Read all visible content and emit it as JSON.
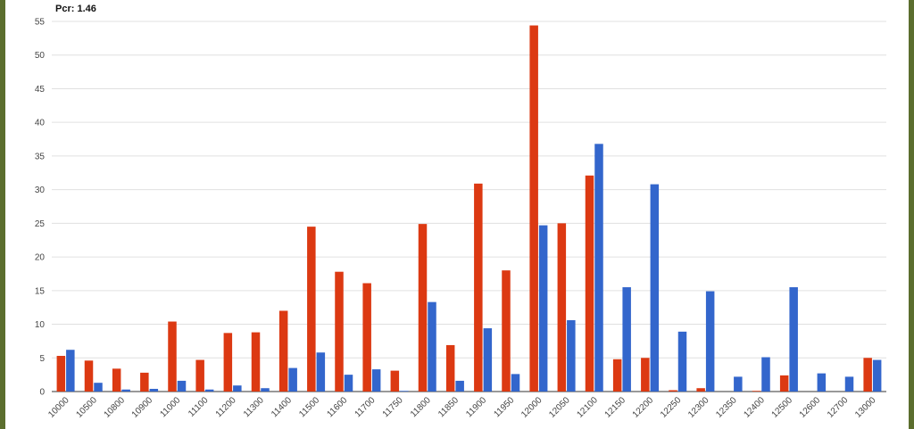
{
  "chart_data": {
    "type": "bar",
    "title": "Pcr: 1.46",
    "xlabel": "",
    "ylabel": "",
    "ylim": [
      0,
      55
    ],
    "yticks": [
      0,
      5,
      10,
      15,
      20,
      25,
      30,
      35,
      40,
      45,
      50,
      55
    ],
    "grid": true,
    "legend": "none",
    "categories": [
      "10000",
      "10500",
      "10800",
      "10900",
      "11000",
      "11100",
      "11200",
      "11300",
      "11400",
      "11500",
      "11600",
      "11700",
      "11750",
      "11800",
      "11850",
      "11900",
      "11950",
      "12000",
      "12050",
      "12100",
      "12150",
      "12200",
      "12250",
      "12300",
      "12350",
      "12400",
      "12500",
      "12600",
      "12700",
      "13000"
    ],
    "series": [
      {
        "color": "#dc3912",
        "values": [
          5.3,
          4.6,
          3.4,
          2.8,
          10.4,
          4.7,
          8.7,
          8.8,
          12.0,
          24.5,
          17.8,
          16.1,
          3.1,
          24.9,
          6.9,
          30.9,
          18.0,
          54.4,
          25.0,
          32.1,
          4.8,
          5.0,
          0.2,
          0.5,
          0,
          0.1,
          2.4,
          0,
          0,
          5.0
        ]
      },
      {
        "color": "#3366cc",
        "values": [
          6.2,
          1.3,
          0.3,
          0.4,
          1.6,
          0.3,
          0.9,
          0.5,
          3.5,
          5.8,
          2.5,
          3.3,
          0.1,
          13.3,
          1.6,
          9.4,
          2.6,
          24.7,
          10.6,
          36.8,
          15.5,
          30.8,
          8.9,
          14.9,
          2.2,
          5.1,
          15.5,
          2.7,
          2.2,
          4.7
        ]
      }
    ]
  }
}
